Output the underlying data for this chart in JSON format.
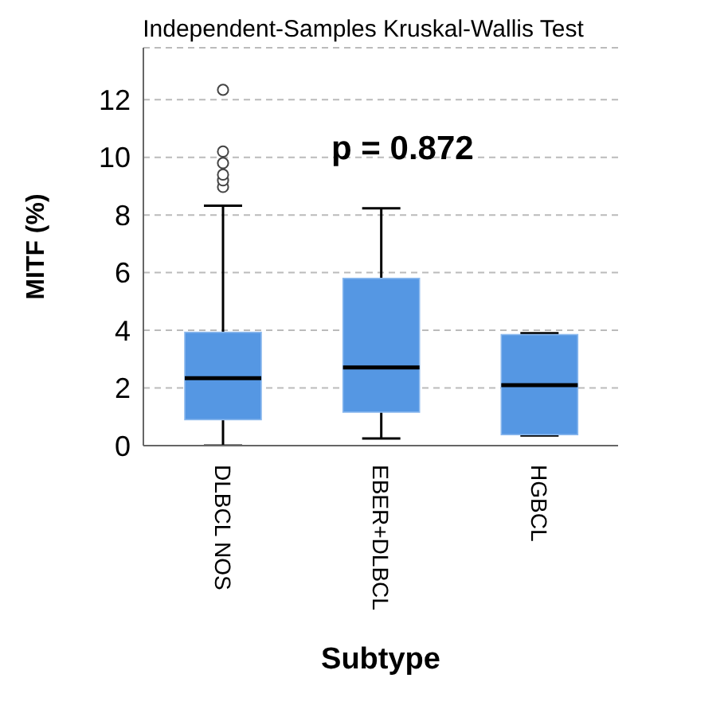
{
  "chart_data": {
    "type": "box",
    "title": "Independent-Samples Kruskal-Wallis Test",
    "xlabel": "Subtype",
    "ylabel": "MITF (%)",
    "categories": [
      "DLBCL NOS",
      "EBER+DLBCL",
      "HGBCL"
    ],
    "color": "#5597e3",
    "boxes": [
      {
        "low": 0,
        "q1": 0.9,
        "median": 2.34,
        "q3": 3.93,
        "high": 8.32,
        "outliers": [
          8.97,
          9.2,
          9.4,
          9.8,
          10.2,
          12.34
        ]
      },
      {
        "low": 0.25,
        "q1": 1.16,
        "median": 2.71,
        "q3": 5.8,
        "high": 8.23
      },
      {
        "low": 0.35,
        "q1": 0.38,
        "median": 2.1,
        "q3": 3.85,
        "high": 3.9
      }
    ],
    "ylim": [
      0,
      13.8
    ],
    "yticks": [
      0,
      2,
      4,
      6,
      8,
      10,
      12
    ],
    "grid": "y",
    "annotations": [
      "p = 0.872"
    ]
  }
}
